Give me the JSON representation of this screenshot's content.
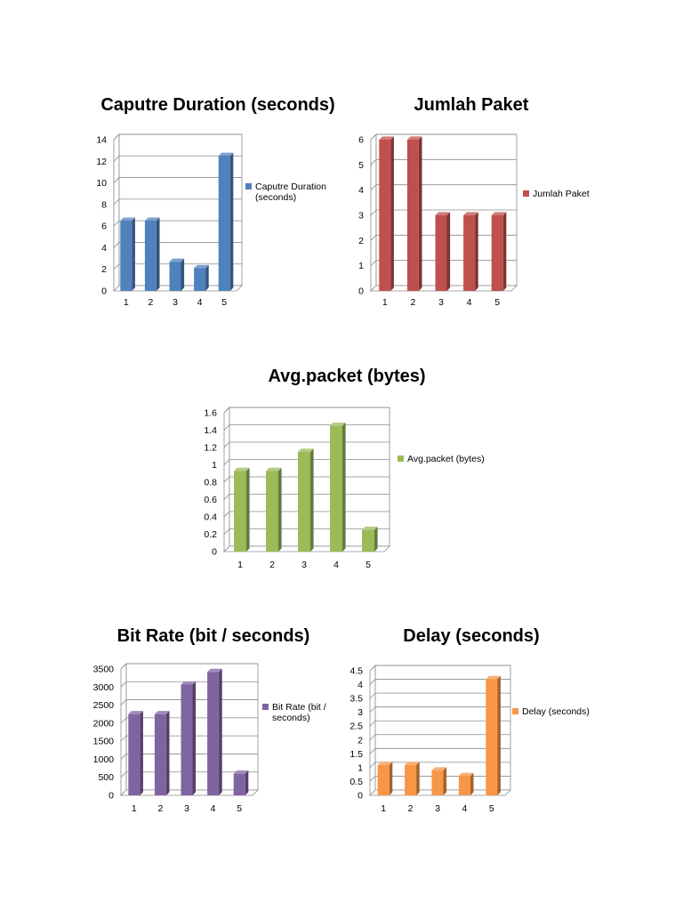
{
  "chart_data": [
    {
      "id": "capture",
      "type": "bar",
      "title": "Caputre Duration (seconds)",
      "categories": [
        "1",
        "2",
        "3",
        "4",
        "5"
      ],
      "series": [
        {
          "name": "Caputre Duration (seconds)",
          "legend_lines": [
            "Caputre Duration",
            "(seconds)"
          ],
          "values": [
            6.5,
            6.5,
            2.7,
            2.1,
            12.5
          ]
        }
      ],
      "ylim": [
        0,
        14
      ],
      "yticks": [
        "0",
        "2",
        "4",
        "6",
        "8",
        "10",
        "12",
        "14"
      ],
      "grid": true,
      "legend": "right",
      "color": "#4f81bd"
    },
    {
      "id": "paket",
      "type": "bar",
      "title": "Jumlah Paket",
      "categories": [
        "1",
        "2",
        "3",
        "4",
        "5"
      ],
      "series": [
        {
          "name": "Jumlah Paket",
          "legend_lines": [
            "Jumlah Paket"
          ],
          "values": [
            6,
            6,
            3,
            3,
            3
          ]
        }
      ],
      "ylim": [
        0,
        6
      ],
      "yticks": [
        "0",
        "1",
        "2",
        "3",
        "4",
        "5",
        "6"
      ],
      "grid": true,
      "legend": "right",
      "color": "#c0504d"
    },
    {
      "id": "avgpacket",
      "type": "bar",
      "title": "Avg.packet (bytes)",
      "categories": [
        "1",
        "2",
        "3",
        "4",
        "5"
      ],
      "series": [
        {
          "name": "Avg.packet (bytes)",
          "legend_lines": [
            "Avg.packet (bytes)"
          ],
          "values": [
            0.93,
            0.93,
            1.15,
            1.45,
            0.25
          ]
        }
      ],
      "ylim": [
        0,
        1.6
      ],
      "yticks": [
        "0",
        "0.2",
        "0.4",
        "0.6",
        "0.8",
        "1",
        "1.2",
        "1.4",
        "1.6"
      ],
      "grid": true,
      "legend": "right",
      "color": "#9bbb59"
    },
    {
      "id": "bitrate",
      "type": "bar",
      "title": "Bit Rate (bit / seconds)",
      "categories": [
        "1",
        "2",
        "3",
        "4",
        "5"
      ],
      "series": [
        {
          "name": "Bit Rate (bit / seconds)",
          "legend_lines": [
            "Bit Rate (bit /",
            "seconds)"
          ],
          "values": [
            2250,
            2250,
            3070,
            3420,
            600
          ]
        }
      ],
      "ylim": [
        0,
        3500
      ],
      "yticks": [
        "0",
        "500",
        "1000",
        "1500",
        "2000",
        "2500",
        "3000",
        "3500"
      ],
      "grid": true,
      "legend": "right",
      "color": "#8064a2"
    },
    {
      "id": "delay",
      "type": "bar",
      "title": "Delay (seconds)",
      "categories": [
        "1",
        "2",
        "3",
        "4",
        "5"
      ],
      "series": [
        {
          "name": "Delay (seconds)",
          "legend_lines": [
            "Delay (seconds)"
          ],
          "values": [
            1.1,
            1.1,
            0.9,
            0.7,
            4.2
          ]
        }
      ],
      "ylim": [
        0,
        4.5
      ],
      "yticks": [
        "0",
        "0.5",
        "1",
        "1.5",
        "2",
        "2.5",
        "3",
        "3.5",
        "4",
        "4.5"
      ],
      "grid": true,
      "legend": "right",
      "color": "#f79646"
    }
  ]
}
